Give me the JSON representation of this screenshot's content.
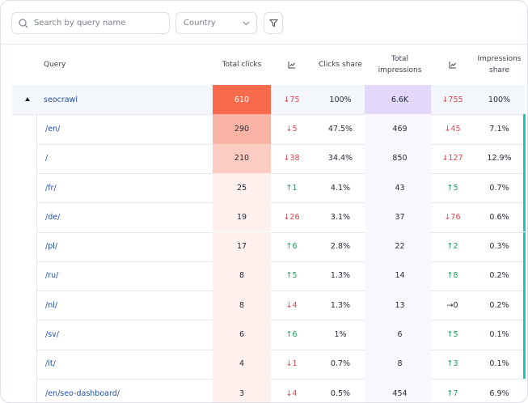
{
  "filters": {
    "search_placeholder": "Search by query name",
    "country": "Country"
  },
  "table": {
    "headers": {
      "query": "Query",
      "clicks": "Total clicks",
      "clicks_share": "Clicks share",
      "impressions": "Total impressions",
      "impressions_share": "Impressions share"
    },
    "rows": [
      {
        "query": "seocrawl",
        "clicks": "610",
        "clicks_change": "↓75",
        "clicks_share": "100%",
        "impressions": "6.6K",
        "impressions_change": "↓755",
        "impressions_share": "100%"
      },
      {
        "query": "/en/",
        "clicks": "290",
        "clicks_change": "↓5",
        "clicks_share": "47.5%",
        "impressions": "469",
        "impressions_change": "↓45",
        "impressions_share": "7.1%"
      },
      {
        "query": "/",
        "clicks": "210",
        "clicks_change": "↓38",
        "clicks_share": "34.4%",
        "impressions": "850",
        "impressions_change": "↓127",
        "impressions_share": "12.9%"
      },
      {
        "query": "/fr/",
        "clicks": "25",
        "clicks_change": "↑1",
        "clicks_share": "4.1%",
        "impressions": "43",
        "impressions_change": "↑5",
        "impressions_share": "0.7%"
      },
      {
        "query": "/de/",
        "clicks": "19",
        "clicks_change": "↓26",
        "clicks_share": "3.1%",
        "impressions": "37",
        "impressions_change": "↓76",
        "impressions_share": "0.6%"
      },
      {
        "query": "/pl/",
        "clicks": "17",
        "clicks_change": "↑6",
        "clicks_share": "2.8%",
        "impressions": "22",
        "impressions_change": "↑2",
        "impressions_share": "0.3%"
      },
      {
        "query": "/ru/",
        "clicks": "8",
        "clicks_change": "↑5",
        "clicks_share": "1.3%",
        "impressions": "14",
        "impressions_change": "↑8",
        "impressions_share": "0.2%"
      },
      {
        "query": "/nl/",
        "clicks": "8",
        "clicks_change": "↓4",
        "clicks_share": "1.3%",
        "impressions": "13",
        "impressions_change": "→0",
        "impressions_share": "0.2%"
      },
      {
        "query": "/sv/",
        "clicks": "6",
        "clicks_change": "↑6",
        "clicks_share": "1%",
        "impressions": "6",
        "impressions_change": "↑5",
        "impressions_share": "0.1%"
      },
      {
        "query": "/it/",
        "clicks": "4",
        "clicks_change": "↓1",
        "clicks_share": "0.7%",
        "impressions": "8",
        "impressions_change": "↑3",
        "impressions_share": "0.1%"
      },
      {
        "query": "/en/seo-dashboard/",
        "clicks": "3",
        "clicks_change": "↓4",
        "clicks_share": "0.5%",
        "impressions": "454",
        "impressions_change": "↑7",
        "impressions_share": "6.9%"
      }
    ]
  }
}
